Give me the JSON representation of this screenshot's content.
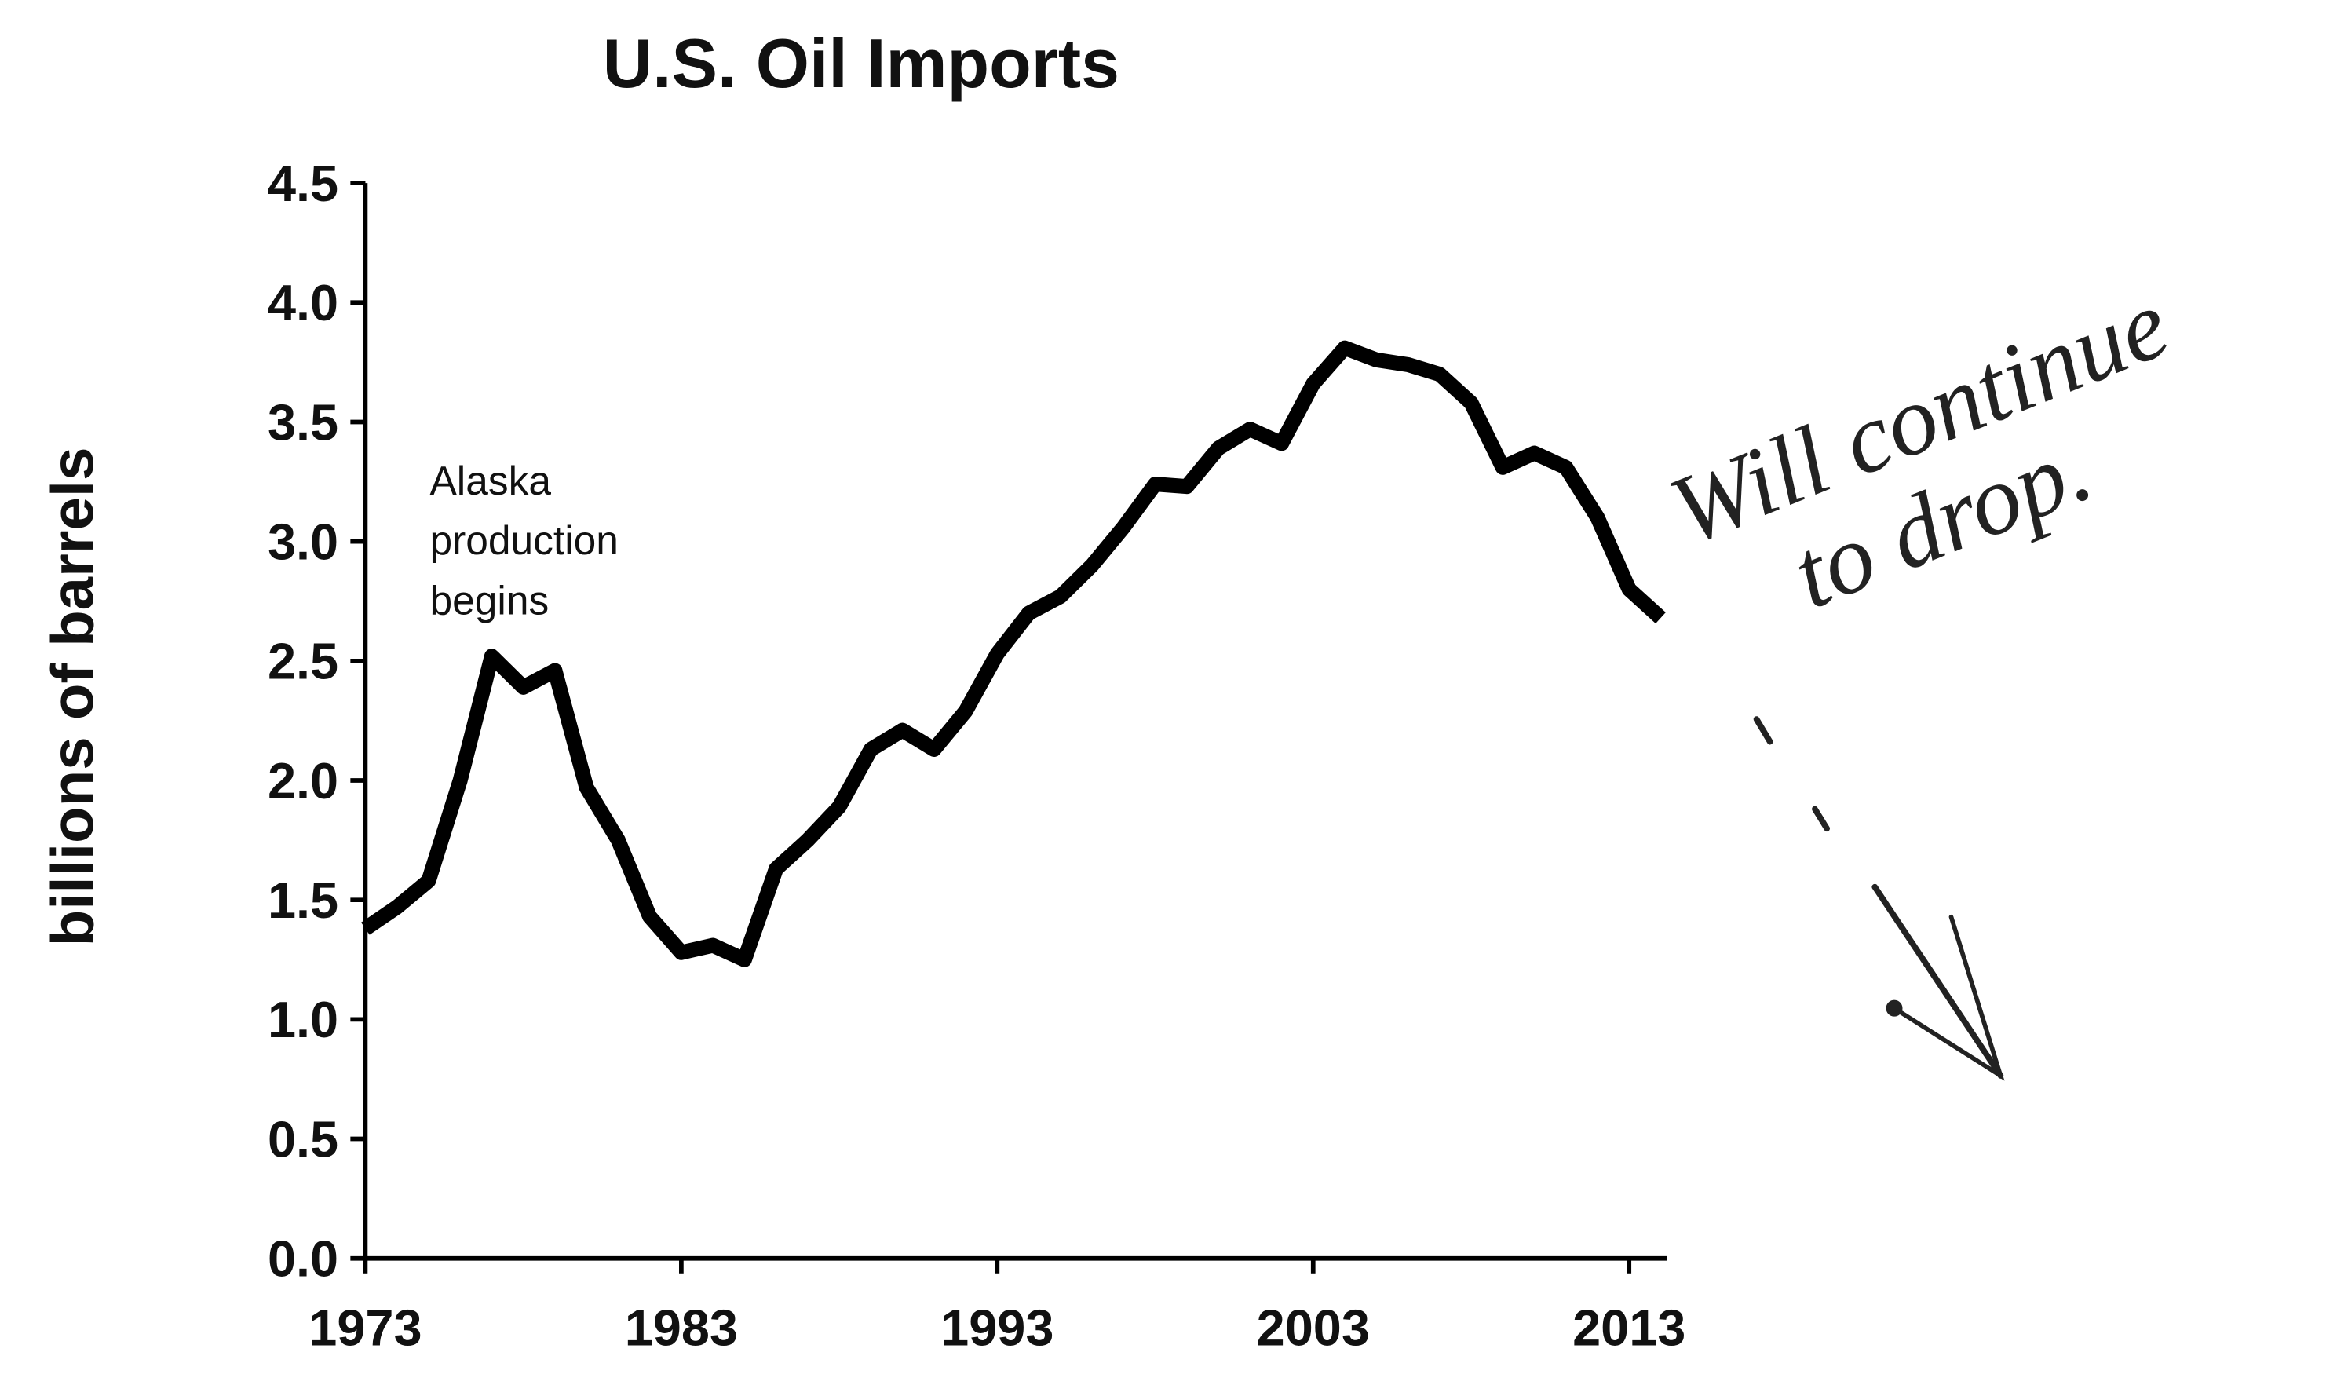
{
  "chart_data": {
    "type": "line",
    "title": "U.S. Oil Imports",
    "y_label": "billions of barrels",
    "annotation": [
      "Alaska",
      "production",
      "begins"
    ],
    "handwritten_note": [
      "Will continue",
      "to drop."
    ],
    "x": [
      1973,
      1974,
      1975,
      1976,
      1977,
      1978,
      1979,
      1980,
      1981,
      1982,
      1983,
      1984,
      1985,
      1986,
      1987,
      1988,
      1989,
      1990,
      1991,
      1992,
      1993,
      1994,
      1995,
      1996,
      1997,
      1998,
      1999,
      2000,
      2001,
      2002,
      2003,
      2004,
      2005,
      2006,
      2007,
      2008,
      2009,
      2010,
      2011,
      2012,
      2013,
      2014
    ],
    "series": [
      {
        "name": "U.S. Oil Imports",
        "color": "#000000",
        "values": [
          1.38,
          1.47,
          1.58,
          2.0,
          2.52,
          2.39,
          2.46,
          1.97,
          1.75,
          1.43,
          1.28,
          1.31,
          1.25,
          1.63,
          1.75,
          1.89,
          2.13,
          2.21,
          2.13,
          2.29,
          2.53,
          2.7,
          2.77,
          2.9,
          3.06,
          3.24,
          3.23,
          3.39,
          3.47,
          3.41,
          3.66,
          3.81,
          3.76,
          3.74,
          3.7,
          3.58,
          3.31,
          3.37,
          3.31,
          3.1,
          2.8,
          2.68
        ]
      }
    ],
    "xlim": [
      1973,
      2014
    ],
    "ylim": [
      0,
      4.5
    ],
    "xticks": [
      1973,
      1983,
      1993,
      2003,
      2013
    ],
    "yticks": [
      {
        "value": 0,
        "label": "0.0"
      },
      0.5,
      {
        "value": 1,
        "label": "1.0"
      },
      1.5,
      {
        "value": 2,
        "label": "2.0"
      },
      2.5,
      {
        "value": 3,
        "label": "3.0"
      },
      3.5,
      {
        "value": 4,
        "label": "4.0"
      },
      4.5
    ],
    "grid": false
  }
}
